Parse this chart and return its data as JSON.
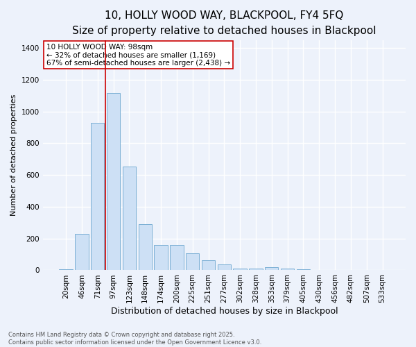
{
  "title": "10, HOLLY WOOD WAY, BLACKPOOL, FY4 5FQ",
  "subtitle": "Size of property relative to detached houses in Blackpool",
  "xlabel": "Distribution of detached houses by size in Blackpool",
  "ylabel": "Number of detached properties",
  "categories": [
    "20sqm",
    "46sqm",
    "71sqm",
    "97sqm",
    "123sqm",
    "148sqm",
    "174sqm",
    "200sqm",
    "225sqm",
    "251sqm",
    "277sqm",
    "302sqm",
    "328sqm",
    "353sqm",
    "379sqm",
    "405sqm",
    "430sqm",
    "456sqm",
    "482sqm",
    "507sqm",
    "533sqm"
  ],
  "values": [
    8,
    228,
    930,
    1115,
    655,
    290,
    160,
    160,
    105,
    65,
    35,
    12,
    10,
    20,
    10,
    5,
    3,
    1,
    0,
    0,
    0
  ],
  "bar_color": "#cde0f5",
  "bar_edge_color": "#7aafd4",
  "background_color": "#edf2fb",
  "grid_color": "#ffffff",
  "vline_x_index": 3,
  "vline_color": "#cc0000",
  "annotation_text": "10 HOLLY WOOD WAY: 98sqm\n← 32% of detached houses are smaller (1,169)\n67% of semi-detached houses are larger (2,438) →",
  "annotation_box_color": "#ffffff",
  "annotation_box_edge_color": "#cc0000",
  "footnote": "Contains HM Land Registry data © Crown copyright and database right 2025.\nContains public sector information licensed under the Open Government Licence v3.0.",
  "ylim": [
    0,
    1450
  ],
  "yticks": [
    0,
    200,
    400,
    600,
    800,
    1000,
    1200,
    1400
  ],
  "title_fontsize": 11,
  "subtitle_fontsize": 9,
  "xlabel_fontsize": 9,
  "ylabel_fontsize": 8,
  "tick_fontsize": 7.5,
  "annotation_fontsize": 7.5,
  "footnote_fontsize": 6
}
